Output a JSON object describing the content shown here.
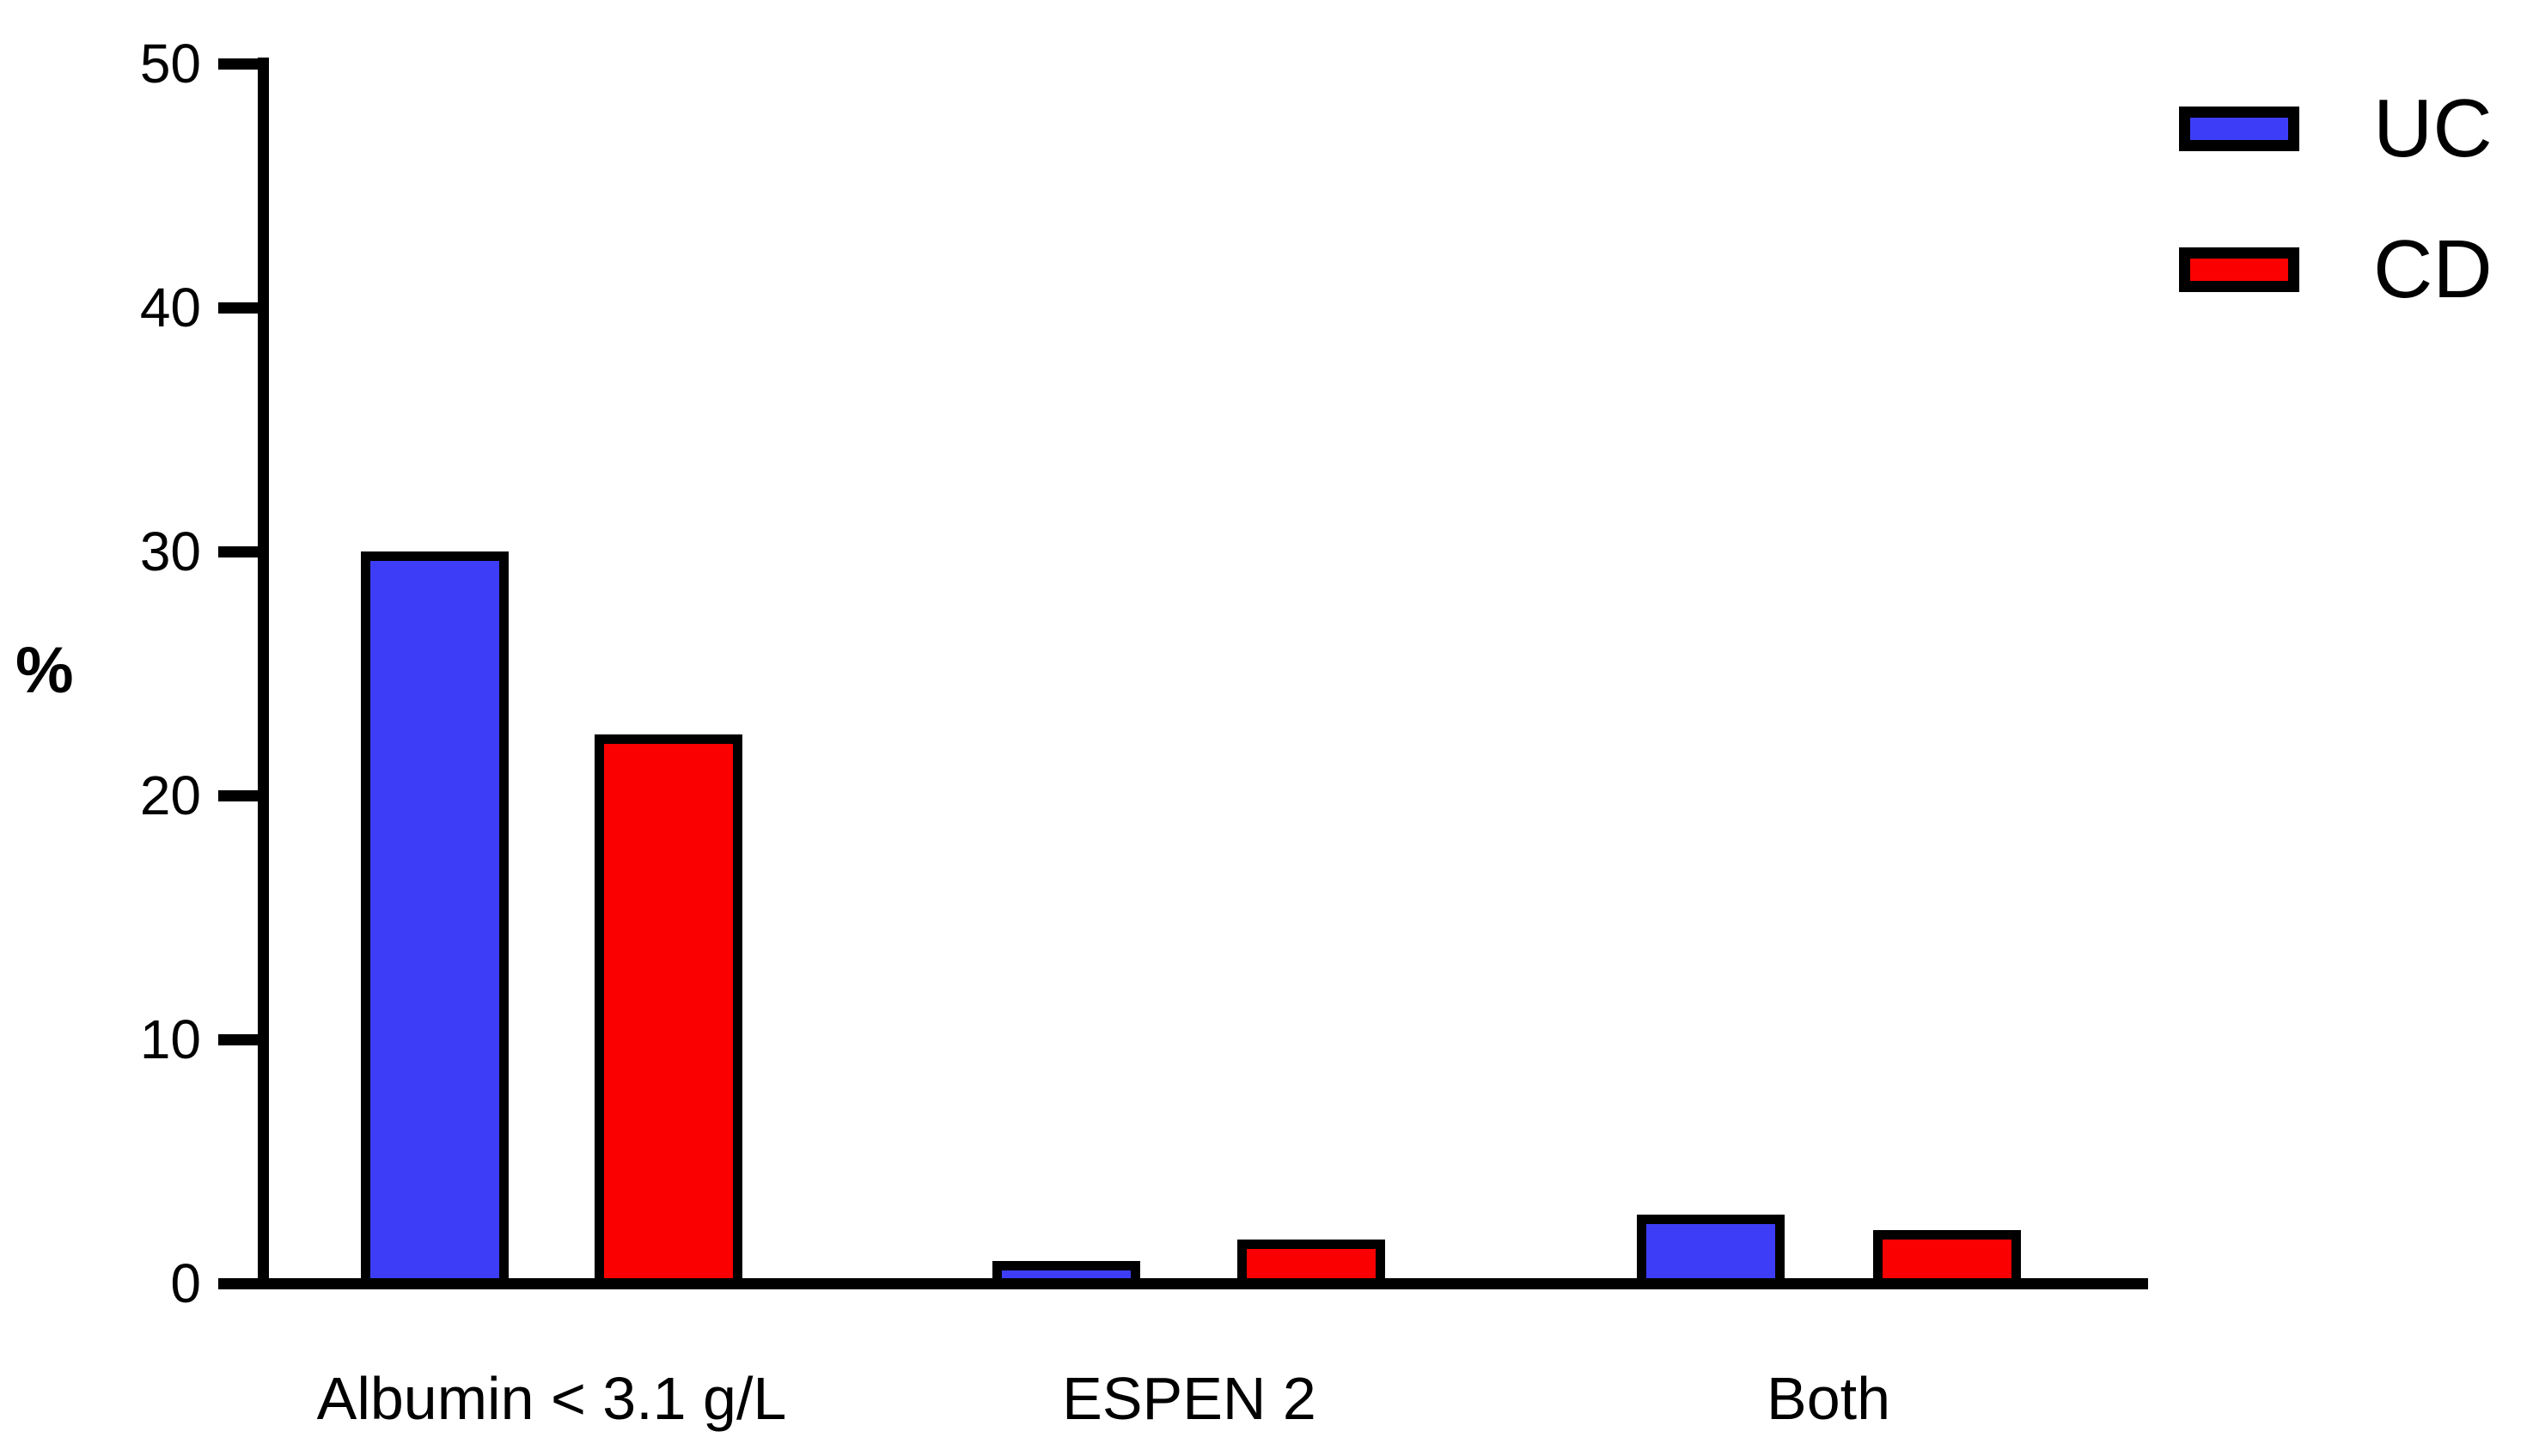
{
  "chart_data": {
    "type": "bar",
    "categories": [
      "Albumin < 3.1 g/L",
      "ESPEN 2",
      "Both"
    ],
    "series": [
      {
        "name": "UC",
        "color": "#3D3DF7",
        "values": [
          30.0,
          0.9,
          2.8
        ]
      },
      {
        "name": "CD",
        "color": "#FB0000",
        "values": [
          22.5,
          1.8,
          2.2
        ]
      }
    ],
    "title": "",
    "xlabel": "",
    "ylabel": "%",
    "ylim": [
      0,
      50
    ],
    "yticks": [
      0,
      10,
      20,
      30,
      40,
      50
    ],
    "grid": false,
    "legend_position": "top-right",
    "bar_border_color": "#000000",
    "axis_color": "#000000"
  }
}
